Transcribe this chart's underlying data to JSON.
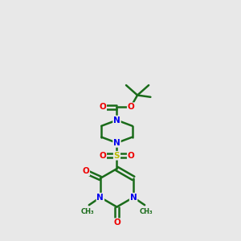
{
  "background_color": "#e8e8e8",
  "bond_color": "#1a6b1a",
  "N_color": "#0000ee",
  "O_color": "#ee0000",
  "S_color": "#bbbb00",
  "figsize": [
    3.0,
    3.0
  ],
  "dpi": 100,
  "xlim": [
    0,
    10
  ],
  "ylim": [
    0,
    13
  ]
}
